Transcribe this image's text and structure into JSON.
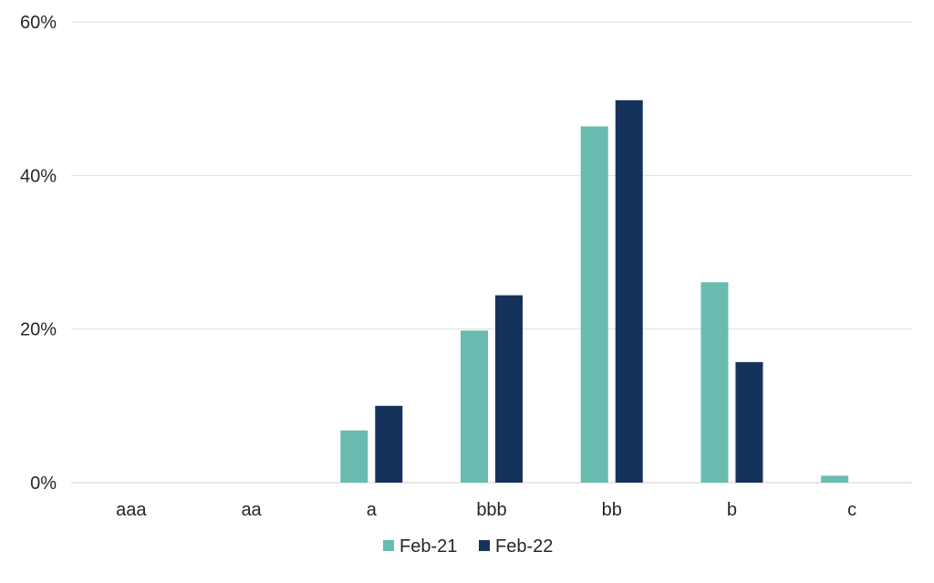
{
  "chart_data": {
    "type": "bar",
    "title": "",
    "xlabel": "",
    "ylabel": "",
    "categories": [
      "aaa",
      "aa",
      "a",
      "bbb",
      "bb",
      "b",
      "c"
    ],
    "series": [
      {
        "name": "Feb-21",
        "color": "#6abbb0",
        "values": [
          0,
          0,
          6.8,
          19.8,
          46.4,
          26.1,
          0.9
        ]
      },
      {
        "name": "Feb-22",
        "color": "#15335a",
        "values": [
          0,
          0,
          10.0,
          24.4,
          49.8,
          15.7,
          0
        ]
      }
    ],
    "ylim": [
      0,
      60
    ],
    "yticks": [
      0,
      20,
      40,
      60
    ],
    "ytick_labels": [
      "0%",
      "20%",
      "40%",
      "60%"
    ],
    "grid": true,
    "legend_position": "bottom"
  }
}
